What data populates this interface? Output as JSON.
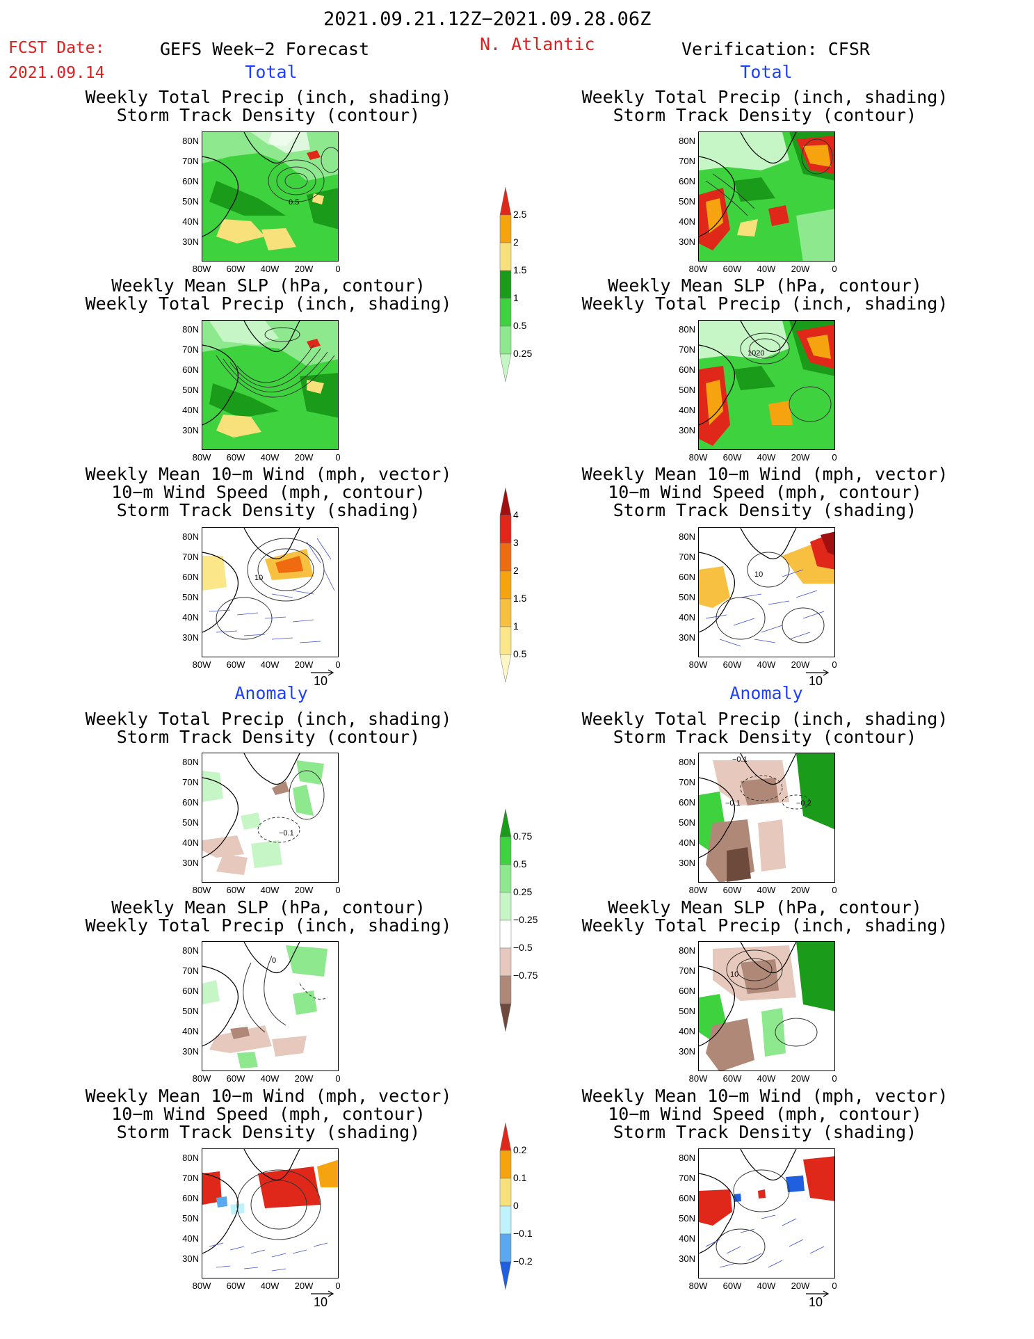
{
  "header": {
    "date_range": "2021.09.21.12Z−2021.09.28.06Z",
    "fcst_label": "FCST Date:",
    "fcst_date": "2021.09.14",
    "left_title": "GEFS Week−2 Forecast",
    "region": "N. Atlantic",
    "right_title": "Verification: CFSR"
  },
  "sections": {
    "total": "Total",
    "anomaly": "Anomaly"
  },
  "titles": {
    "precip_storm": [
      "Weekly Total Precip (inch, shading)",
      "Storm Track Density (contour)"
    ],
    "slp_precip": [
      "Weekly Mean SLP (hPa, contour)",
      "Weekly Total Precip (inch, shading)"
    ],
    "wind": [
      "Weekly Mean 10−m Wind (mph, vector)",
      "10−m Wind Speed (mph, contour)",
      "Storm Track Density (shading)"
    ]
  },
  "axes": {
    "lat_labels": [
      "80N",
      "70N",
      "60N",
      "50N",
      "40N",
      "30N"
    ],
    "lon_labels": [
      "80W",
      "60W",
      "40W",
      "20W",
      "0"
    ]
  },
  "vector_ref": "10",
  "colorbars": {
    "precip_total": {
      "labels": [
        "2.5",
        "2",
        "1.5",
        "1",
        "0.5",
        "0.25"
      ],
      "colors": [
        "#e0281a",
        "#f5a30f",
        "#f8e07a",
        "#1a9b1a",
        "#3fd23f",
        "#8ee88e",
        "#c6f5c6"
      ]
    },
    "storm_total": {
      "labels": [
        "4",
        "3",
        "2",
        "1.5",
        "1",
        "0.5"
      ],
      "colors": [
        "#a01010",
        "#e0281a",
        "#f06a10",
        "#f5a30f",
        "#f8c040",
        "#fbe78a",
        "#fdf7c8"
      ]
    },
    "precip_anom": {
      "labels": [
        "0.75",
        "0.5",
        "0.25",
        "−0.25",
        "−0.5",
        "−0.75"
      ],
      "colors": [
        "#1a9b1a",
        "#3fd23f",
        "#8ee88e",
        "#c6f5c6",
        "#ffffff",
        "#e6c8bc",
        "#b08878",
        "#6e4a3c"
      ]
    },
    "storm_anom": {
      "labels": [
        "0.2",
        "0.1",
        "0",
        "−0.1",
        "−0.2"
      ],
      "colors": [
        "#e0281a",
        "#f5a30f",
        "#f8e07a",
        "#bff3fb",
        "#5aa8f0",
        "#1f5fe0"
      ]
    }
  },
  "contour_labels": {
    "p1_left": "0.5",
    "p2_right": "1020",
    "p3_left": "10",
    "p3_right": "10",
    "p4_left": "−0.1",
    "p4_right_a": "−0.1",
    "p4_right_b": "−0.2",
    "p4_right_c": "−0.1",
    "p5_left": "0",
    "p5_right": "10"
  }
}
